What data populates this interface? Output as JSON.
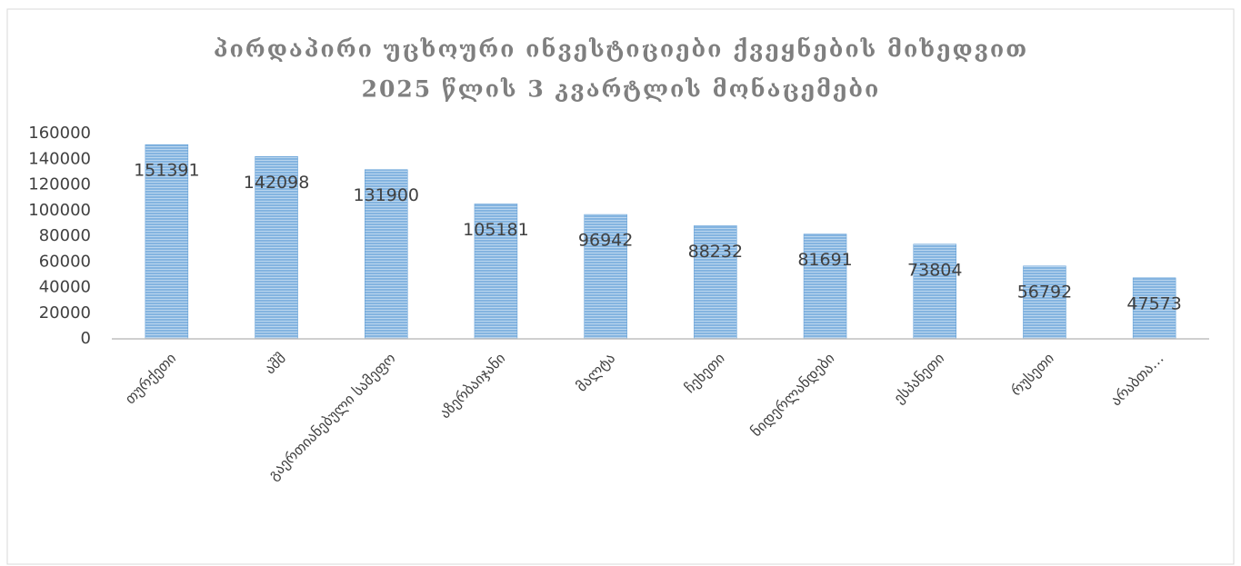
{
  "chart_data": {
    "type": "bar",
    "title": [
      "პირდაპირი უცხოური ინვესტიციები ქვეყნების მიხედვით",
      "2025 წლის 3 კვარტლის მონაცემები"
    ],
    "categories": [
      "თურქეთი",
      "აშშ",
      "გაერთიანებული სამეფო",
      "აზერბაიჯანი",
      "მალტა",
      "ჩეხეთი",
      "ნიდერლანდები",
      "ესპანეთი",
      "რუსეთი",
      "არაბთა…"
    ],
    "values": [
      151391,
      142098,
      131900,
      105181,
      96942,
      88232,
      81691,
      73804,
      56792,
      47573
    ],
    "color": "#5b9bd5",
    "ylim": [
      0,
      160000
    ],
    "yticks": [
      0,
      20000,
      40000,
      60000,
      80000,
      100000,
      120000,
      140000,
      160000
    ],
    "grid": false
  }
}
